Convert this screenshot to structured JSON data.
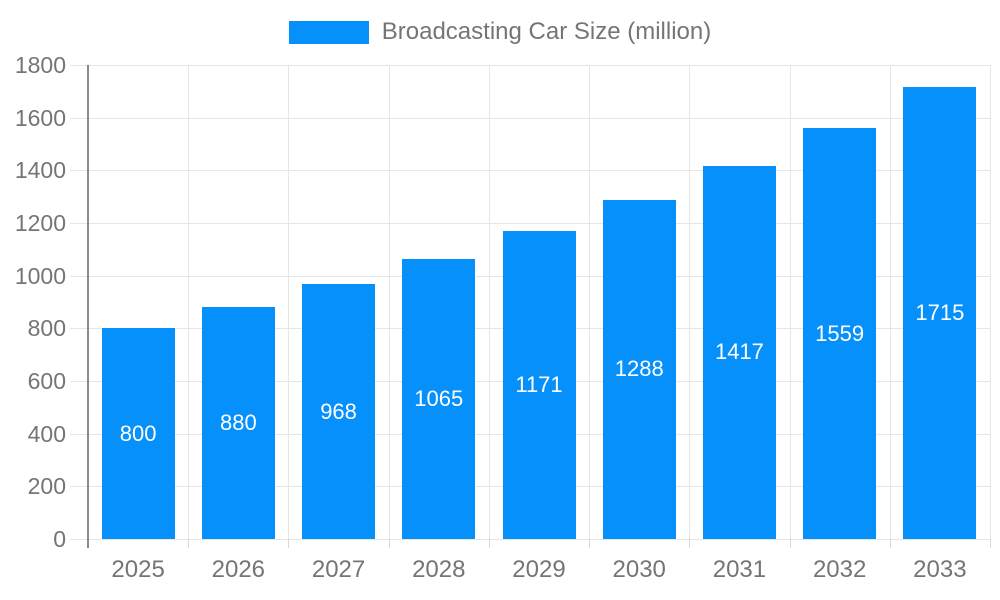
{
  "chart_data": {
    "type": "bar",
    "title": "",
    "legend": {
      "label": "Broadcasting Car Size (million)",
      "position": "top"
    },
    "categories": [
      "2025",
      "2026",
      "2027",
      "2028",
      "2029",
      "2030",
      "2031",
      "2032",
      "2033"
    ],
    "series": [
      {
        "name": "Broadcasting Car Size (million)",
        "values": [
          800,
          880,
          968,
          1065,
          1171,
          1288,
          1417,
          1559,
          1715
        ]
      }
    ],
    "value_labels_shown": true,
    "xlabel": "",
    "ylabel": "",
    "ylim": [
      0,
      1800
    ],
    "yticks": [
      0,
      200,
      400,
      600,
      800,
      1000,
      1200,
      1400,
      1600,
      1800
    ],
    "grid": true,
    "colors": {
      "bar": "#0690FB",
      "value_label": "#ffffff",
      "axis_label": "#757575",
      "gridline": "#e6e6e6",
      "x_tick": "#d9d9d9",
      "y_axis_line": "#8a8a8a",
      "background": "#ffffff"
    }
  }
}
